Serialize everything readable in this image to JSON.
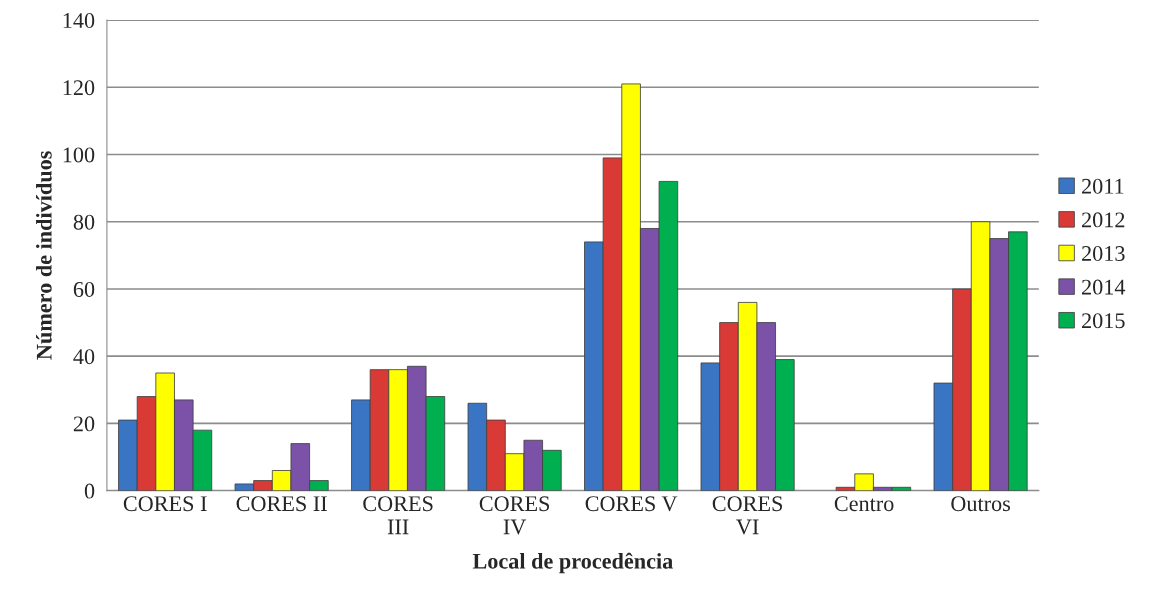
{
  "chart_data": {
    "type": "bar",
    "xlabel": "Local de procedência",
    "ylabel": "Número de indivíduos",
    "categories": [
      "CORES I",
      "CORES II",
      "CORES\nIII",
      "CORES\nIV",
      "CORES V",
      "CORES\nVI",
      "Centro",
      "Outros"
    ],
    "series": [
      {
        "name": "2011",
        "color": "#3a75c4",
        "values": [
          21,
          2,
          27,
          26,
          74,
          38,
          0,
          32
        ]
      },
      {
        "name": "2012",
        "color": "#d93a36",
        "values": [
          28,
          3,
          36,
          21,
          99,
          50,
          1,
          60
        ]
      },
      {
        "name": "2013",
        "color": "#ffff00",
        "values": [
          35,
          6,
          36,
          11,
          121,
          56,
          5,
          80
        ]
      },
      {
        "name": "2014",
        "color": "#7b52a8",
        "values": [
          27,
          14,
          37,
          15,
          78,
          50,
          1,
          75
        ]
      },
      {
        "name": "2015",
        "color": "#00b050",
        "values": [
          18,
          3,
          28,
          12,
          92,
          39,
          1,
          77
        ]
      }
    ],
    "ylim": [
      0,
      140
    ],
    "yticks": [
      0,
      20,
      40,
      60,
      80,
      100,
      120,
      140
    ],
    "grid": "y",
    "legend": "right"
  }
}
